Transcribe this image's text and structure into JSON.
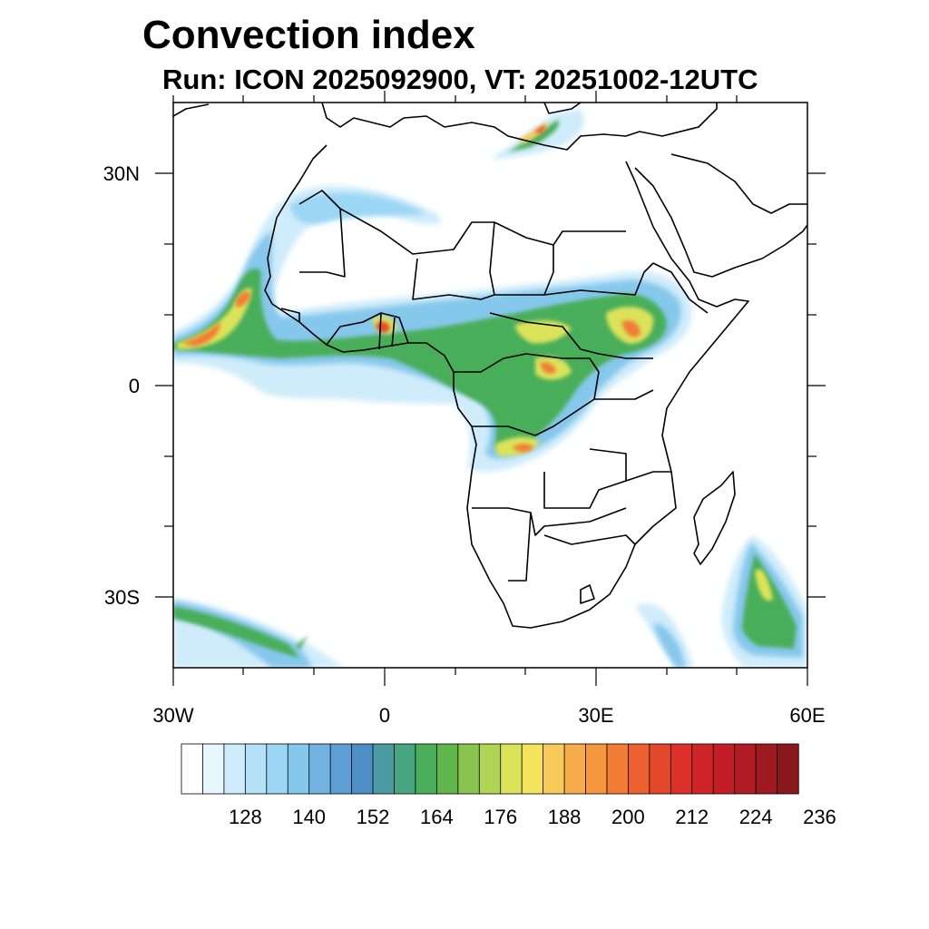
{
  "title": "Convection index",
  "subtitle": "Run: ICON 2025092900,  VT: 20251002-12UTC",
  "map": {
    "extent": {
      "lon_min": -30,
      "lon_max": 60,
      "lat_min": -40,
      "lat_max": 40
    },
    "lat_labels": [
      "30N",
      "0",
      "30S"
    ],
    "lon_labels": [
      "30W",
      "0",
      "30E",
      "60E"
    ]
  },
  "colorbar": {
    "colors": [
      "#ffffff",
      "#e8f6fd",
      "#cdebfa",
      "#b2e1f8",
      "#9bd6f5",
      "#86c7ec",
      "#72b3e2",
      "#5e9fd5",
      "#4e8ec4",
      "#4a9ba3",
      "#47a582",
      "#4aae5a",
      "#60b54b",
      "#88c44f",
      "#b0d453",
      "#dbe35a",
      "#f4e45d",
      "#f7c958",
      "#f7ad4b",
      "#f59640",
      "#f27c36",
      "#ec612f",
      "#e4482b",
      "#db3129",
      "#cf2528",
      "#c31e27",
      "#b01b24",
      "#9c1a20",
      "#8a171c"
    ],
    "labels": [
      "128",
      "140",
      "152",
      "164",
      "176",
      "188",
      "200",
      "212",
      "224",
      "236"
    ]
  }
}
